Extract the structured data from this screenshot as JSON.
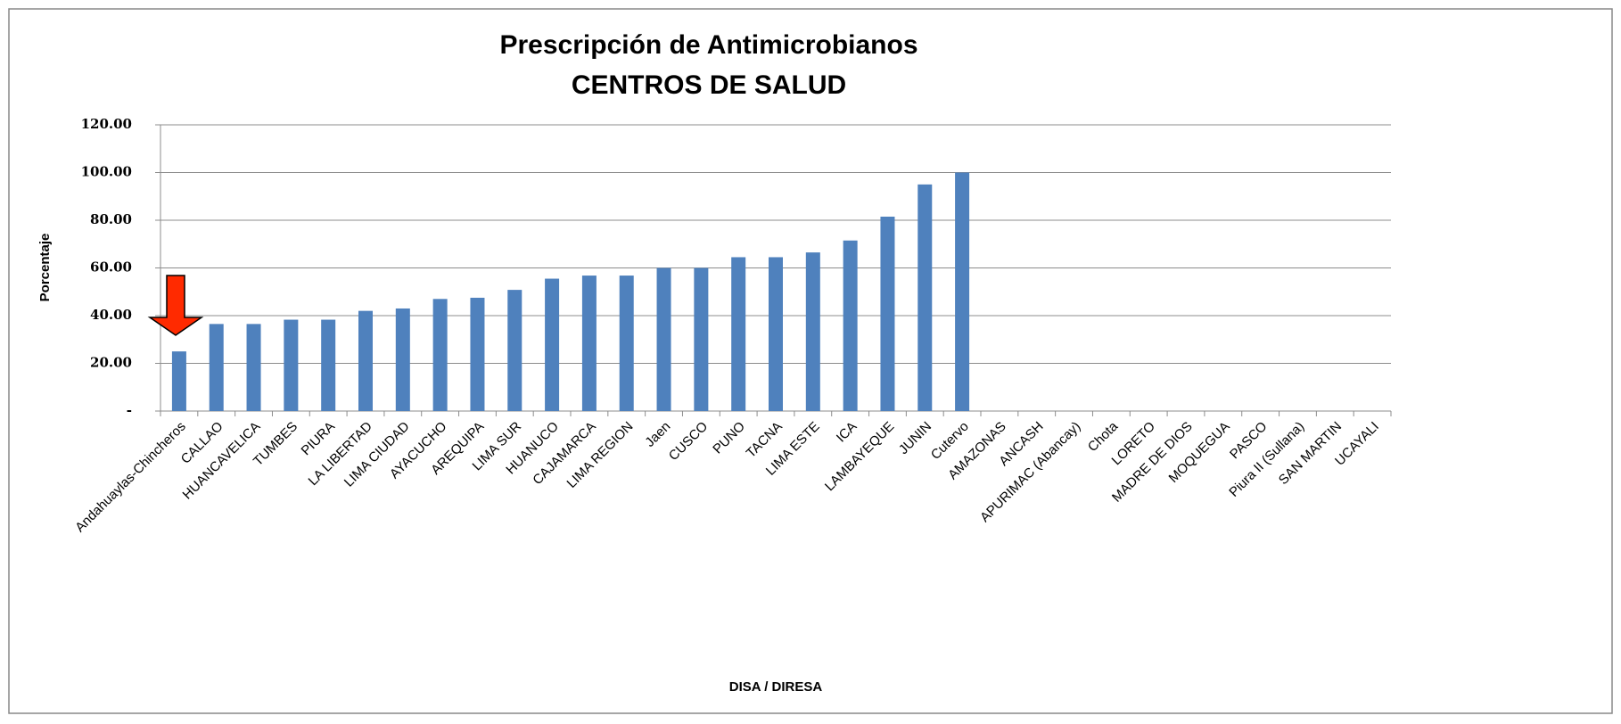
{
  "chart_data": {
    "type": "bar",
    "title": "Prescripción de Antimicrobianos",
    "subtitle": "CENTROS DE SALUD",
    "y_label": "Porcentaje",
    "x_label": "DISA / DIRESA",
    "categories": [
      "Andahuaylas-Chincheros",
      "CALLAO",
      "HUANCAVELICA",
      "TUMBES",
      "PIURA",
      "LA LIBERTAD",
      "LIMA CIUDAD",
      "AYACUCHO",
      "AREQUIPA",
      "LIMA SUR",
      "HUANUCO",
      "CAJAMARCA",
      "LIMA REGION",
      "Jaen",
      "CUSCO",
      "PUNO",
      "TACNA",
      "LIMA ESTE",
      "ICA",
      "LAMBAYEQUE",
      "JUNIN",
      "Cutervo",
      "AMAZONAS",
      "ANCASH",
      "APURIMAC (Abancay)",
      "Chota",
      "LORETO",
      "MADRE DE DIOS",
      "MOQUEGUA",
      "PASCO",
      "Piura II (Sullana)",
      "SAN MARTIN",
      "UCAYALI"
    ],
    "values": [
      25,
      36.5,
      36.5,
      38.3,
      38.3,
      42,
      43,
      47,
      47.5,
      50.8,
      55.5,
      56.8,
      56.8,
      60,
      60,
      64.5,
      64.5,
      66.5,
      71.5,
      81.5,
      95,
      100,
      null,
      null,
      null,
      null,
      null,
      null,
      null,
      null,
      null,
      null,
      null
    ],
    "color": "#4f81bd",
    "ylim": [
      0,
      120
    ],
    "yticks": [
      {
        "value": 0,
        "label": "-"
      },
      {
        "value": 20,
        "label": "20.00"
      },
      {
        "value": 40,
        "label": "40.00"
      },
      {
        "value": 60,
        "label": "60.00"
      },
      {
        "value": 80,
        "label": "80.00"
      },
      {
        "value": 100,
        "label": "100.00"
      },
      {
        "value": 120,
        "label": "120.00"
      }
    ],
    "grid": true
  }
}
